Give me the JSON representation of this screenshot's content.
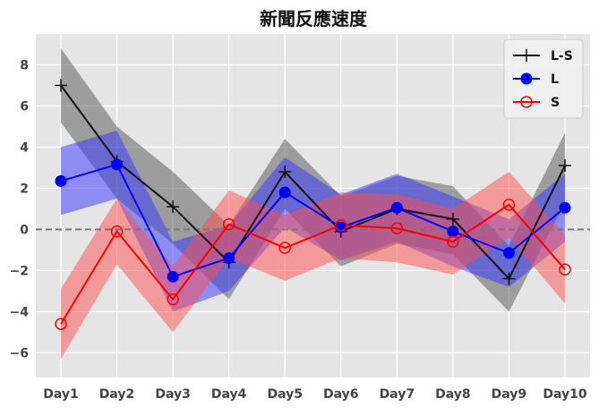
{
  "chart_data": {
    "type": "line",
    "title": "新聞反應速度",
    "xlabel": "",
    "ylabel": "",
    "categories": [
      "Day1",
      "Day2",
      "Day3",
      "Day4",
      "Day5",
      "Day6",
      "Day7",
      "Day8",
      "Day9",
      "Day10"
    ],
    "ylim": [
      -7.2,
      9.5
    ],
    "yticks": [
      -6,
      -4,
      -2,
      0,
      2,
      4,
      6,
      8
    ],
    "grid": true,
    "reference_line": {
      "y": 0,
      "style": "dashed",
      "color": "#777777"
    },
    "legend": {
      "position": "top-right"
    },
    "background": "#e5e5e5",
    "series": [
      {
        "name": "L-S",
        "color": "#111111",
        "band_color": "#555555",
        "marker": "plus",
        "values": [
          7.0,
          3.3,
          1.1,
          -1.6,
          2.8,
          -0.1,
          1.0,
          0.5,
          -2.4,
          3.1
        ],
        "band_low": [
          5.2,
          1.5,
          -0.7,
          -3.4,
          1.0,
          -1.8,
          -0.7,
          -1.2,
          -4.0,
          1.3
        ],
        "band_high": [
          8.8,
          5.0,
          2.8,
          0.2,
          4.4,
          1.6,
          2.6,
          2.1,
          -0.8,
          4.7
        ]
      },
      {
        "name": "L",
        "color": "#0000ff",
        "band_color": "#3333ff",
        "marker": "filled-circle",
        "values": [
          2.35,
          3.15,
          -2.3,
          -1.4,
          1.8,
          0.1,
          1.05,
          -0.1,
          -1.15,
          1.05
        ],
        "band_low": [
          0.7,
          1.5,
          -4.0,
          -3.0,
          0.1,
          -1.5,
          -0.6,
          -1.8,
          -2.8,
          -0.6
        ],
        "band_high": [
          4.0,
          4.8,
          -0.6,
          0.2,
          3.5,
          1.7,
          2.7,
          1.6,
          0.5,
          2.7
        ]
      },
      {
        "name": "S",
        "color": "#ff0000",
        "band_color": "#ff4d4d",
        "marker": "hollow-circle",
        "values": [
          -4.6,
          -0.1,
          -3.4,
          0.25,
          -0.9,
          0.2,
          0.05,
          -0.6,
          1.2,
          -1.95
        ],
        "band_low": [
          -6.3,
          -1.7,
          -5.0,
          -1.4,
          -2.5,
          -1.4,
          -1.6,
          -2.2,
          -0.4,
          -3.6
        ],
        "band_high": [
          -2.9,
          1.5,
          -1.8,
          1.9,
          0.7,
          1.8,
          1.7,
          1.0,
          2.8,
          -0.3
        ]
      }
    ]
  }
}
